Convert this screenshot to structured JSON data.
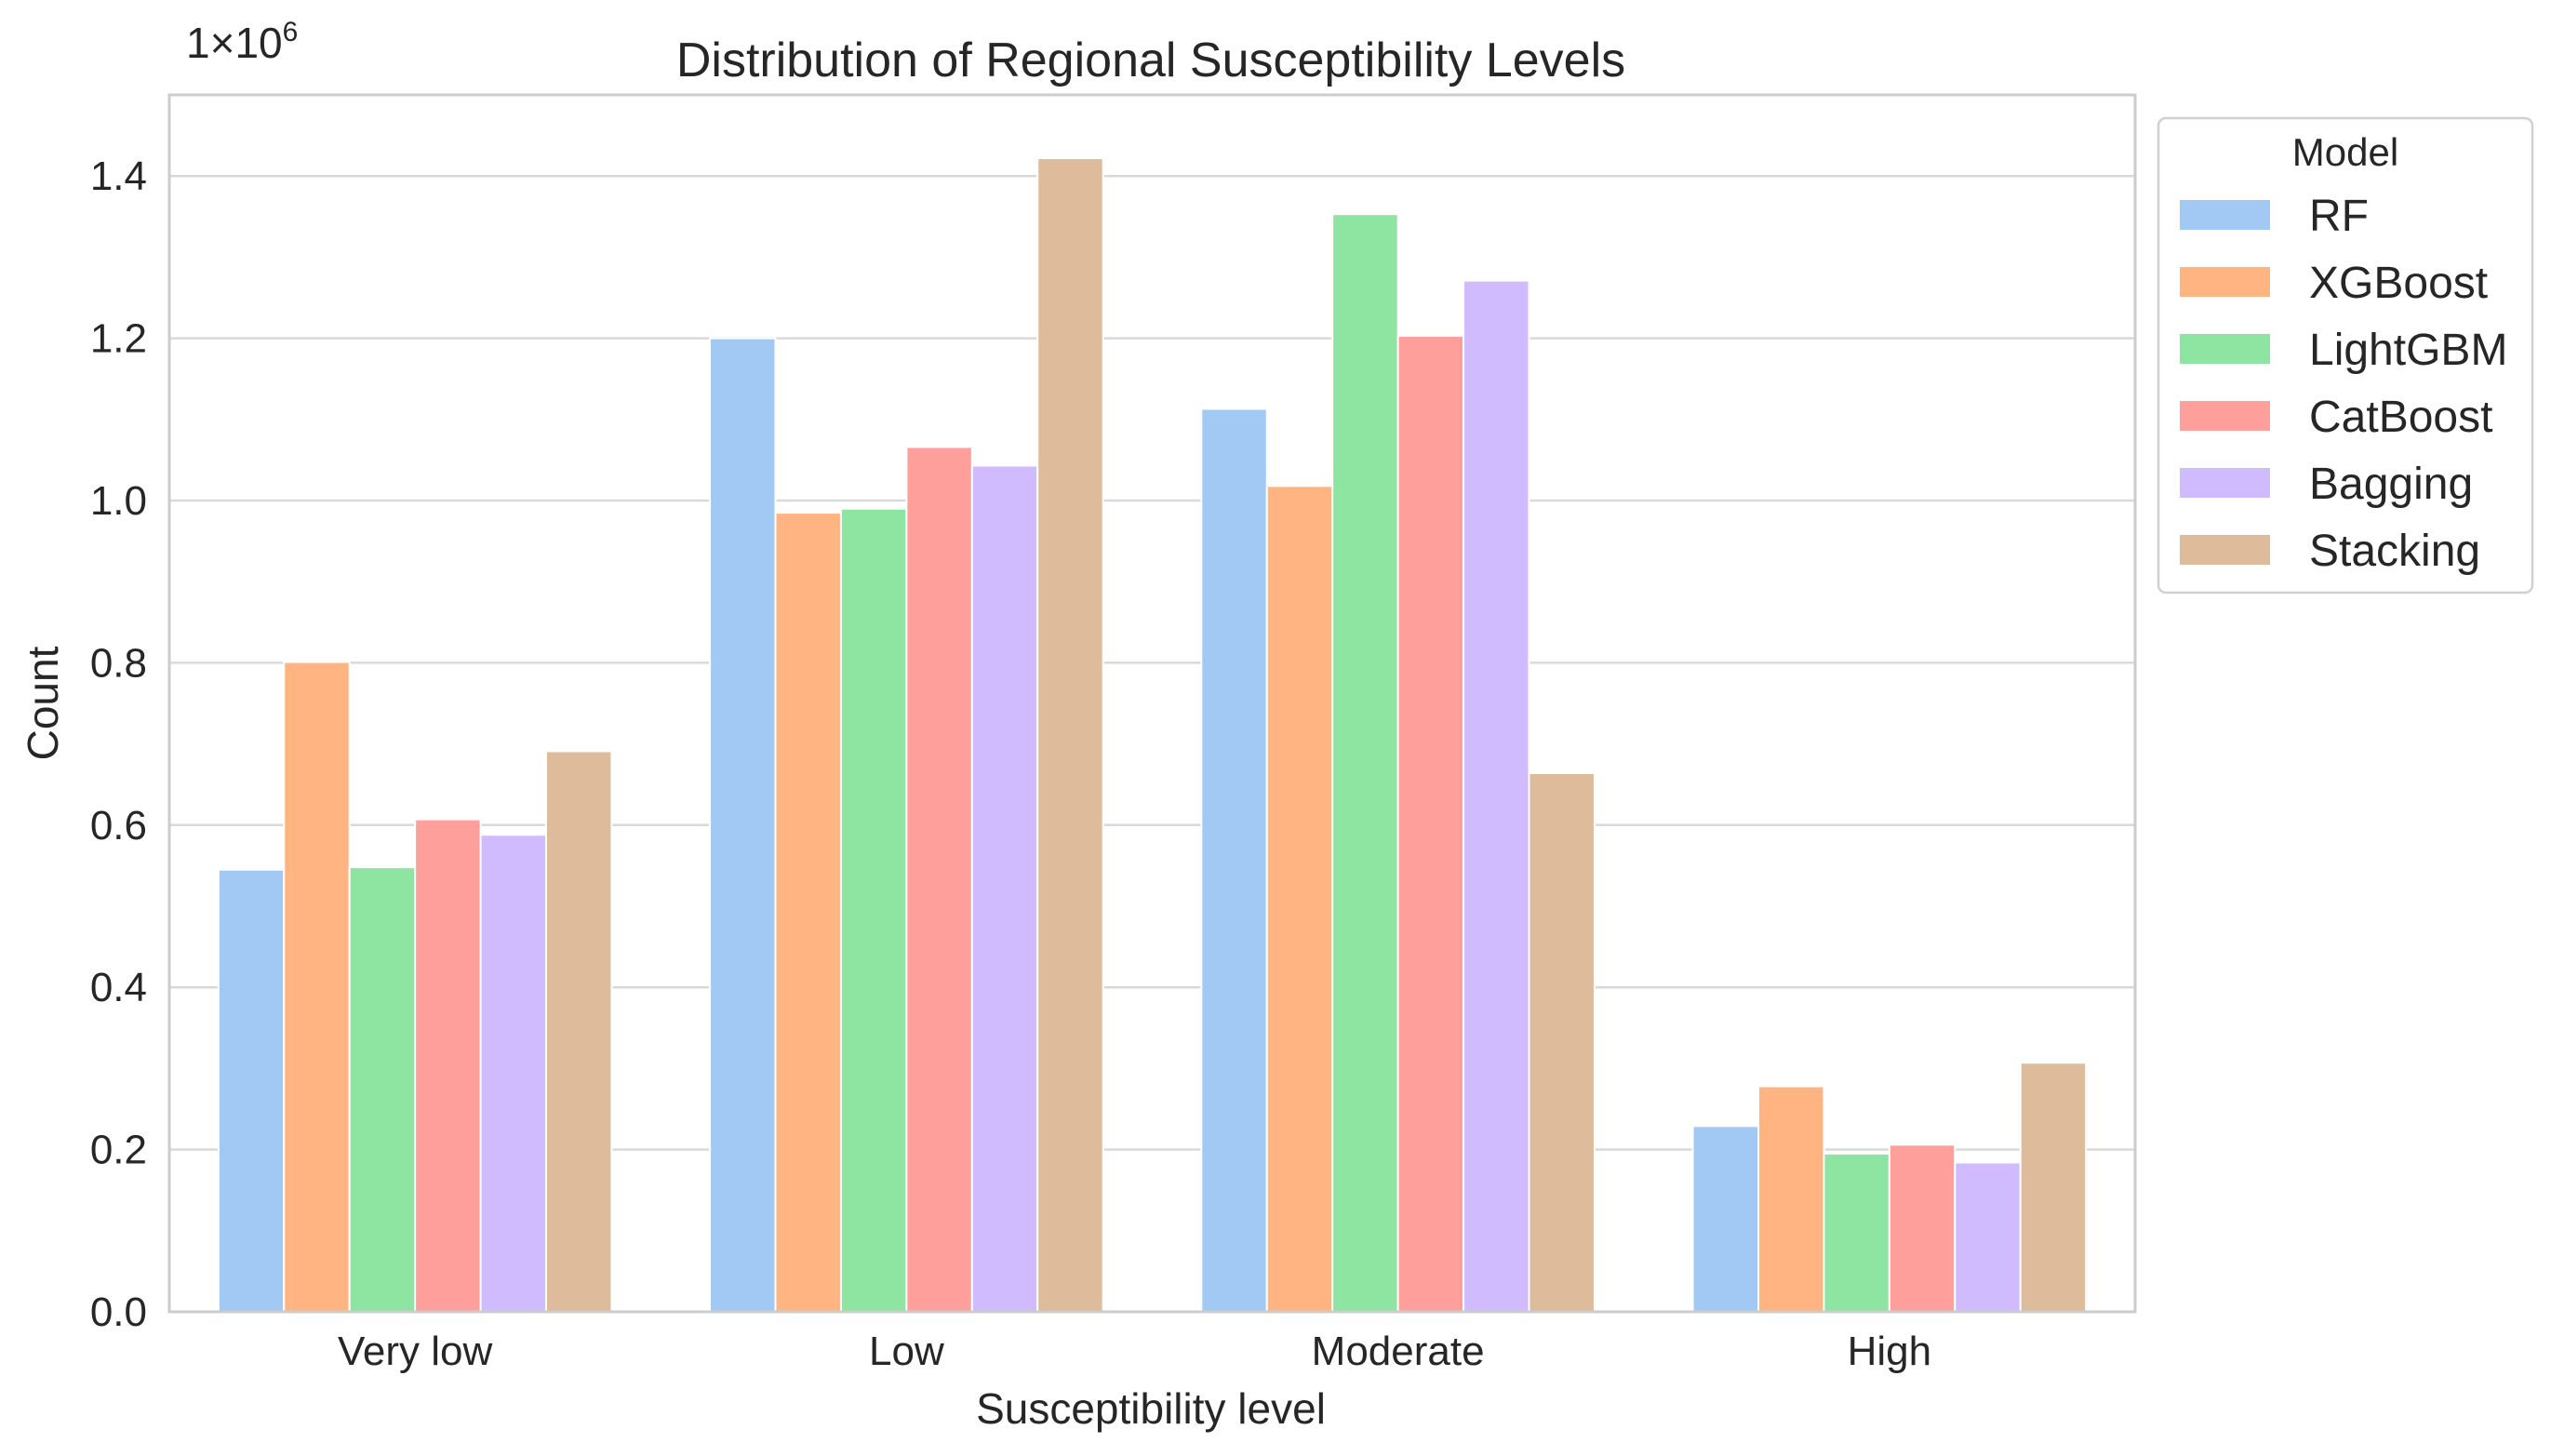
{
  "chart_data": {
    "type": "bar",
    "title": "Distribution of Regional Susceptibility Levels",
    "xlabel": "Susceptibility level",
    "ylabel": "Count",
    "scale_base": "1×10",
    "scale_exponent": "6",
    "ylim": [
      0,
      1.5
    ],
    "yticks": [
      "0.0",
      "0.2",
      "0.4",
      "0.6",
      "0.8",
      "1.0",
      "1.2",
      "1.4"
    ],
    "grid": true,
    "categories": [
      "Very low",
      "Low",
      "Moderate",
      "High"
    ],
    "legend": {
      "title": "Model",
      "position": "outside-top-right"
    },
    "series": [
      {
        "name": "RF",
        "color": "#a1c9f4",
        "values": [
          0.545,
          1.2,
          1.113,
          0.229
        ]
      },
      {
        "name": "XGBoost",
        "color": "#ffb482",
        "values": [
          0.801,
          0.985,
          1.018,
          0.278
        ]
      },
      {
        "name": "LightGBM",
        "color": "#8de5a1",
        "values": [
          0.548,
          0.99,
          1.353,
          0.195
        ]
      },
      {
        "name": "CatBoost",
        "color": "#ff9f9b",
        "values": [
          0.607,
          1.066,
          1.203,
          0.206
        ]
      },
      {
        "name": "Bagging",
        "color": "#d0bbff",
        "values": [
          0.588,
          1.043,
          1.271,
          0.184
        ]
      },
      {
        "name": "Stacking",
        "color": "#debb9b",
        "values": [
          0.691,
          1.422,
          0.664,
          0.307
        ]
      }
    ]
  }
}
